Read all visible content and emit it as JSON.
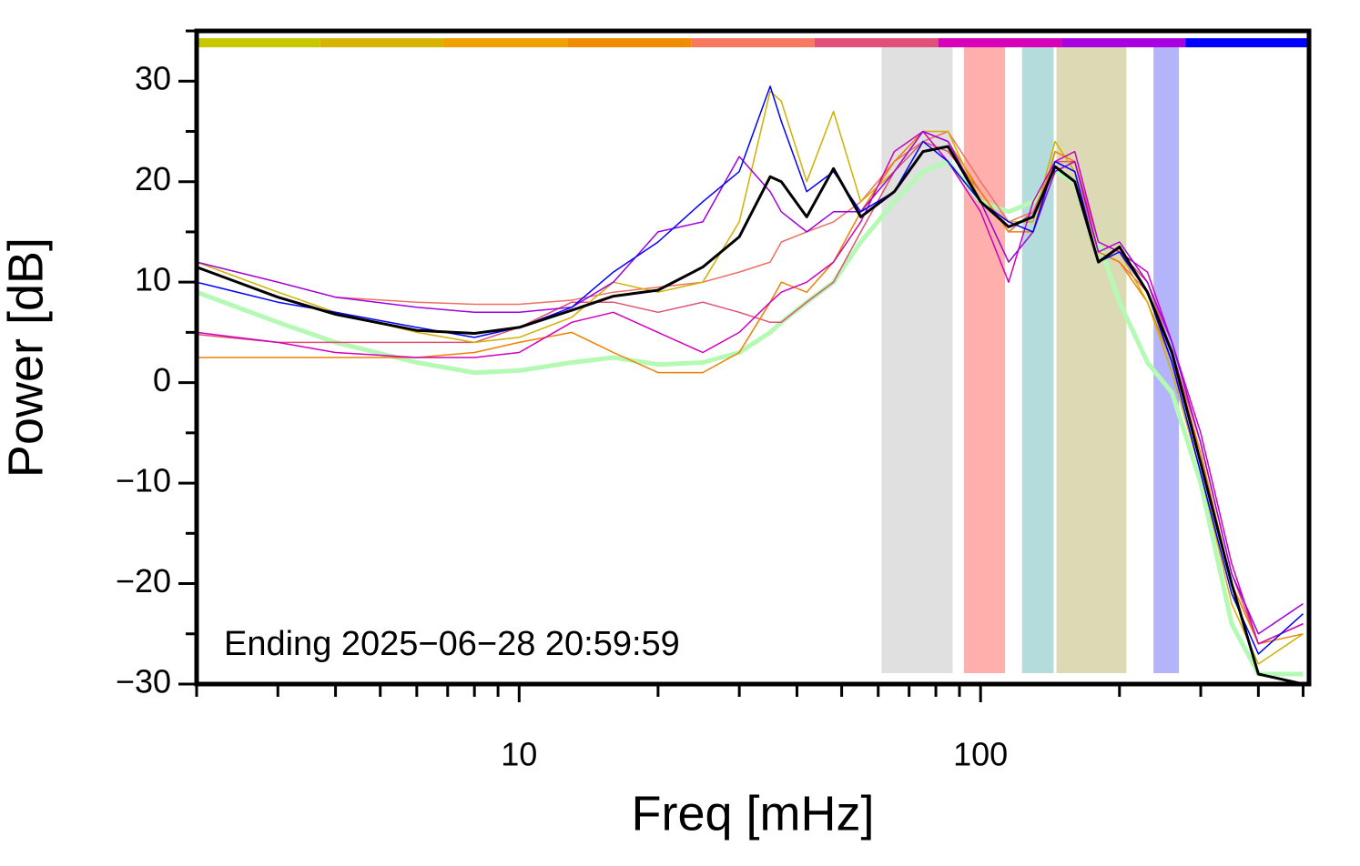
{
  "chart_data": {
    "type": "line",
    "xlabel": "Freq [mHz]",
    "ylabel": "Power [dB]",
    "annotation": "Ending 2025−06−28 20:59:59",
    "xscale": "log",
    "xlim": [
      2,
      515
    ],
    "ylim": [
      -30,
      35
    ],
    "xticks": [
      10,
      100
    ],
    "xminor_ticks": [
      2,
      3,
      4,
      5,
      6,
      7,
      8,
      9,
      20,
      30,
      40,
      50,
      60,
      70,
      80,
      90,
      200,
      300,
      400,
      500
    ],
    "yticks": [
      {
        "value": -30,
        "label": "−30"
      },
      {
        "value": -20,
        "label": "−20"
      },
      {
        "value": -10,
        "label": "−10"
      },
      0,
      10,
      20,
      30
    ],
    "yminor_ticks": [
      -25,
      -15,
      -5,
      5,
      15,
      25,
      35
    ],
    "colorbar": [
      "#c8c800",
      "#d8b400",
      "#f0a000",
      "#f08c00",
      "#f87860",
      "#e05078",
      "#d800b8",
      "#a800e0",
      "#0000ff"
    ],
    "bands": [
      {
        "range": [
          61,
          87
        ],
        "color": "#e0e0e0"
      },
      {
        "range": [
          92,
          113
        ],
        "color": "#ffb0ac"
      },
      {
        "range": [
          123,
          144
        ],
        "color": "#b4dcdc"
      },
      {
        "range": [
          146,
          207
        ],
        "color": "#dcdab4"
      },
      {
        "range": [
          237,
          269
        ],
        "color": "#b4b4fa"
      }
    ],
    "x": [
      2,
      3,
      4,
      6,
      8,
      10,
      13,
      16,
      20,
      25,
      30,
      35,
      37,
      42,
      48,
      55,
      65,
      75,
      85,
      100,
      115,
      130,
      145,
      160,
      180,
      200,
      230,
      260,
      300,
      350,
      400,
      500
    ],
    "series": [
      {
        "color": "#b4fab4",
        "line_width": 5,
        "values": [
          9,
          6,
          4,
          2,
          1,
          1.2,
          2,
          2.5,
          1.8,
          2,
          3,
          5,
          6,
          8,
          10,
          14,
          18,
          21,
          22,
          18,
          17,
          18,
          21,
          20,
          14,
          8,
          2,
          -1,
          -10,
          -24,
          -29,
          -29
        ]
      },
      {
        "color": "#e05070",
        "line_width": 1.5,
        "values": [
          4.8,
          4,
          4,
          4,
          4,
          5.5,
          8,
          8,
          7,
          8,
          7,
          6,
          6,
          8,
          10,
          15,
          21,
          24,
          23,
          19,
          15,
          17,
          22,
          22,
          14,
          13,
          10,
          3,
          -6,
          -19,
          -26,
          -24
        ]
      },
      {
        "color": "#f07060",
        "line_width": 1.5,
        "values": [
          12,
          10,
          8.5,
          8,
          7.8,
          7.8,
          8.2,
          9,
          9.5,
          10,
          11,
          12,
          14,
          15,
          16,
          18,
          22,
          24,
          25,
          20,
          16,
          17,
          22,
          21,
          13,
          12,
          9,
          3,
          -7,
          -20,
          -26,
          -24
        ]
      },
      {
        "color": "#f08000",
        "line_width": 1.5,
        "values": [
          2.5,
          2.5,
          2.5,
          2.5,
          3,
          4,
          5,
          3,
          1,
          1,
          3,
          8,
          10,
          9,
          12,
          17,
          22,
          25,
          24,
          19,
          15,
          15,
          23,
          22,
          13,
          12,
          8,
          2,
          -7,
          -20,
          -26,
          -25
        ]
      },
      {
        "color": "#d0b000",
        "line_width": 1.5,
        "values": [
          12,
          9,
          7,
          5,
          4,
          4.5,
          6.5,
          10,
          9,
          10,
          16,
          29,
          28,
          20,
          27,
          18,
          21,
          25,
          25,
          18,
          16,
          16,
          24,
          21,
          12,
          13,
          8,
          1,
          -9,
          -22,
          -28,
          -25
        ]
      },
      {
        "color": "#d000c0",
        "line_width": 1.5,
        "values": [
          5,
          4,
          3,
          2.5,
          2.5,
          3,
          6,
          7,
          5,
          3,
          5,
          8,
          9,
          10,
          12,
          16,
          23,
          25,
          22,
          17,
          10,
          18,
          22,
          23,
          14,
          13,
          11,
          4,
          -5,
          -18,
          -26,
          -24
        ]
      },
      {
        "color": "#a000e0",
        "line_width": 1.5,
        "values": [
          12,
          10,
          8.5,
          7.5,
          7,
          7,
          7.5,
          10,
          15,
          16,
          22.5,
          19,
          17,
          15,
          17,
          17,
          21,
          25,
          24,
          18,
          12,
          15,
          21,
          22,
          13,
          14,
          10,
          4,
          -6,
          -19,
          -25,
          -22
        ]
      },
      {
        "color": "#0000ff",
        "line_width": 1.5,
        "values": [
          10,
          8,
          7,
          5.5,
          4.5,
          5.5,
          7.5,
          11,
          14,
          18,
          21,
          29.5,
          26,
          19,
          21,
          17,
          19,
          24,
          22,
          18,
          16,
          15,
          22,
          21,
          12,
          13,
          9,
          2,
          -9,
          -21,
          -27,
          -23
        ]
      },
      {
        "color": "#000000",
        "line_width": 3,
        "values": [
          11.5,
          8.5,
          6.8,
          5.2,
          4.9,
          5.5,
          7.2,
          8.6,
          9.2,
          11.5,
          14.5,
          20.5,
          20,
          16.5,
          21.3,
          16.5,
          19,
          23,
          23.5,
          18,
          15.5,
          16.5,
          21.5,
          20,
          12,
          13.5,
          9,
          3,
          -8,
          -20,
          -29,
          -30
        ]
      }
    ]
  }
}
